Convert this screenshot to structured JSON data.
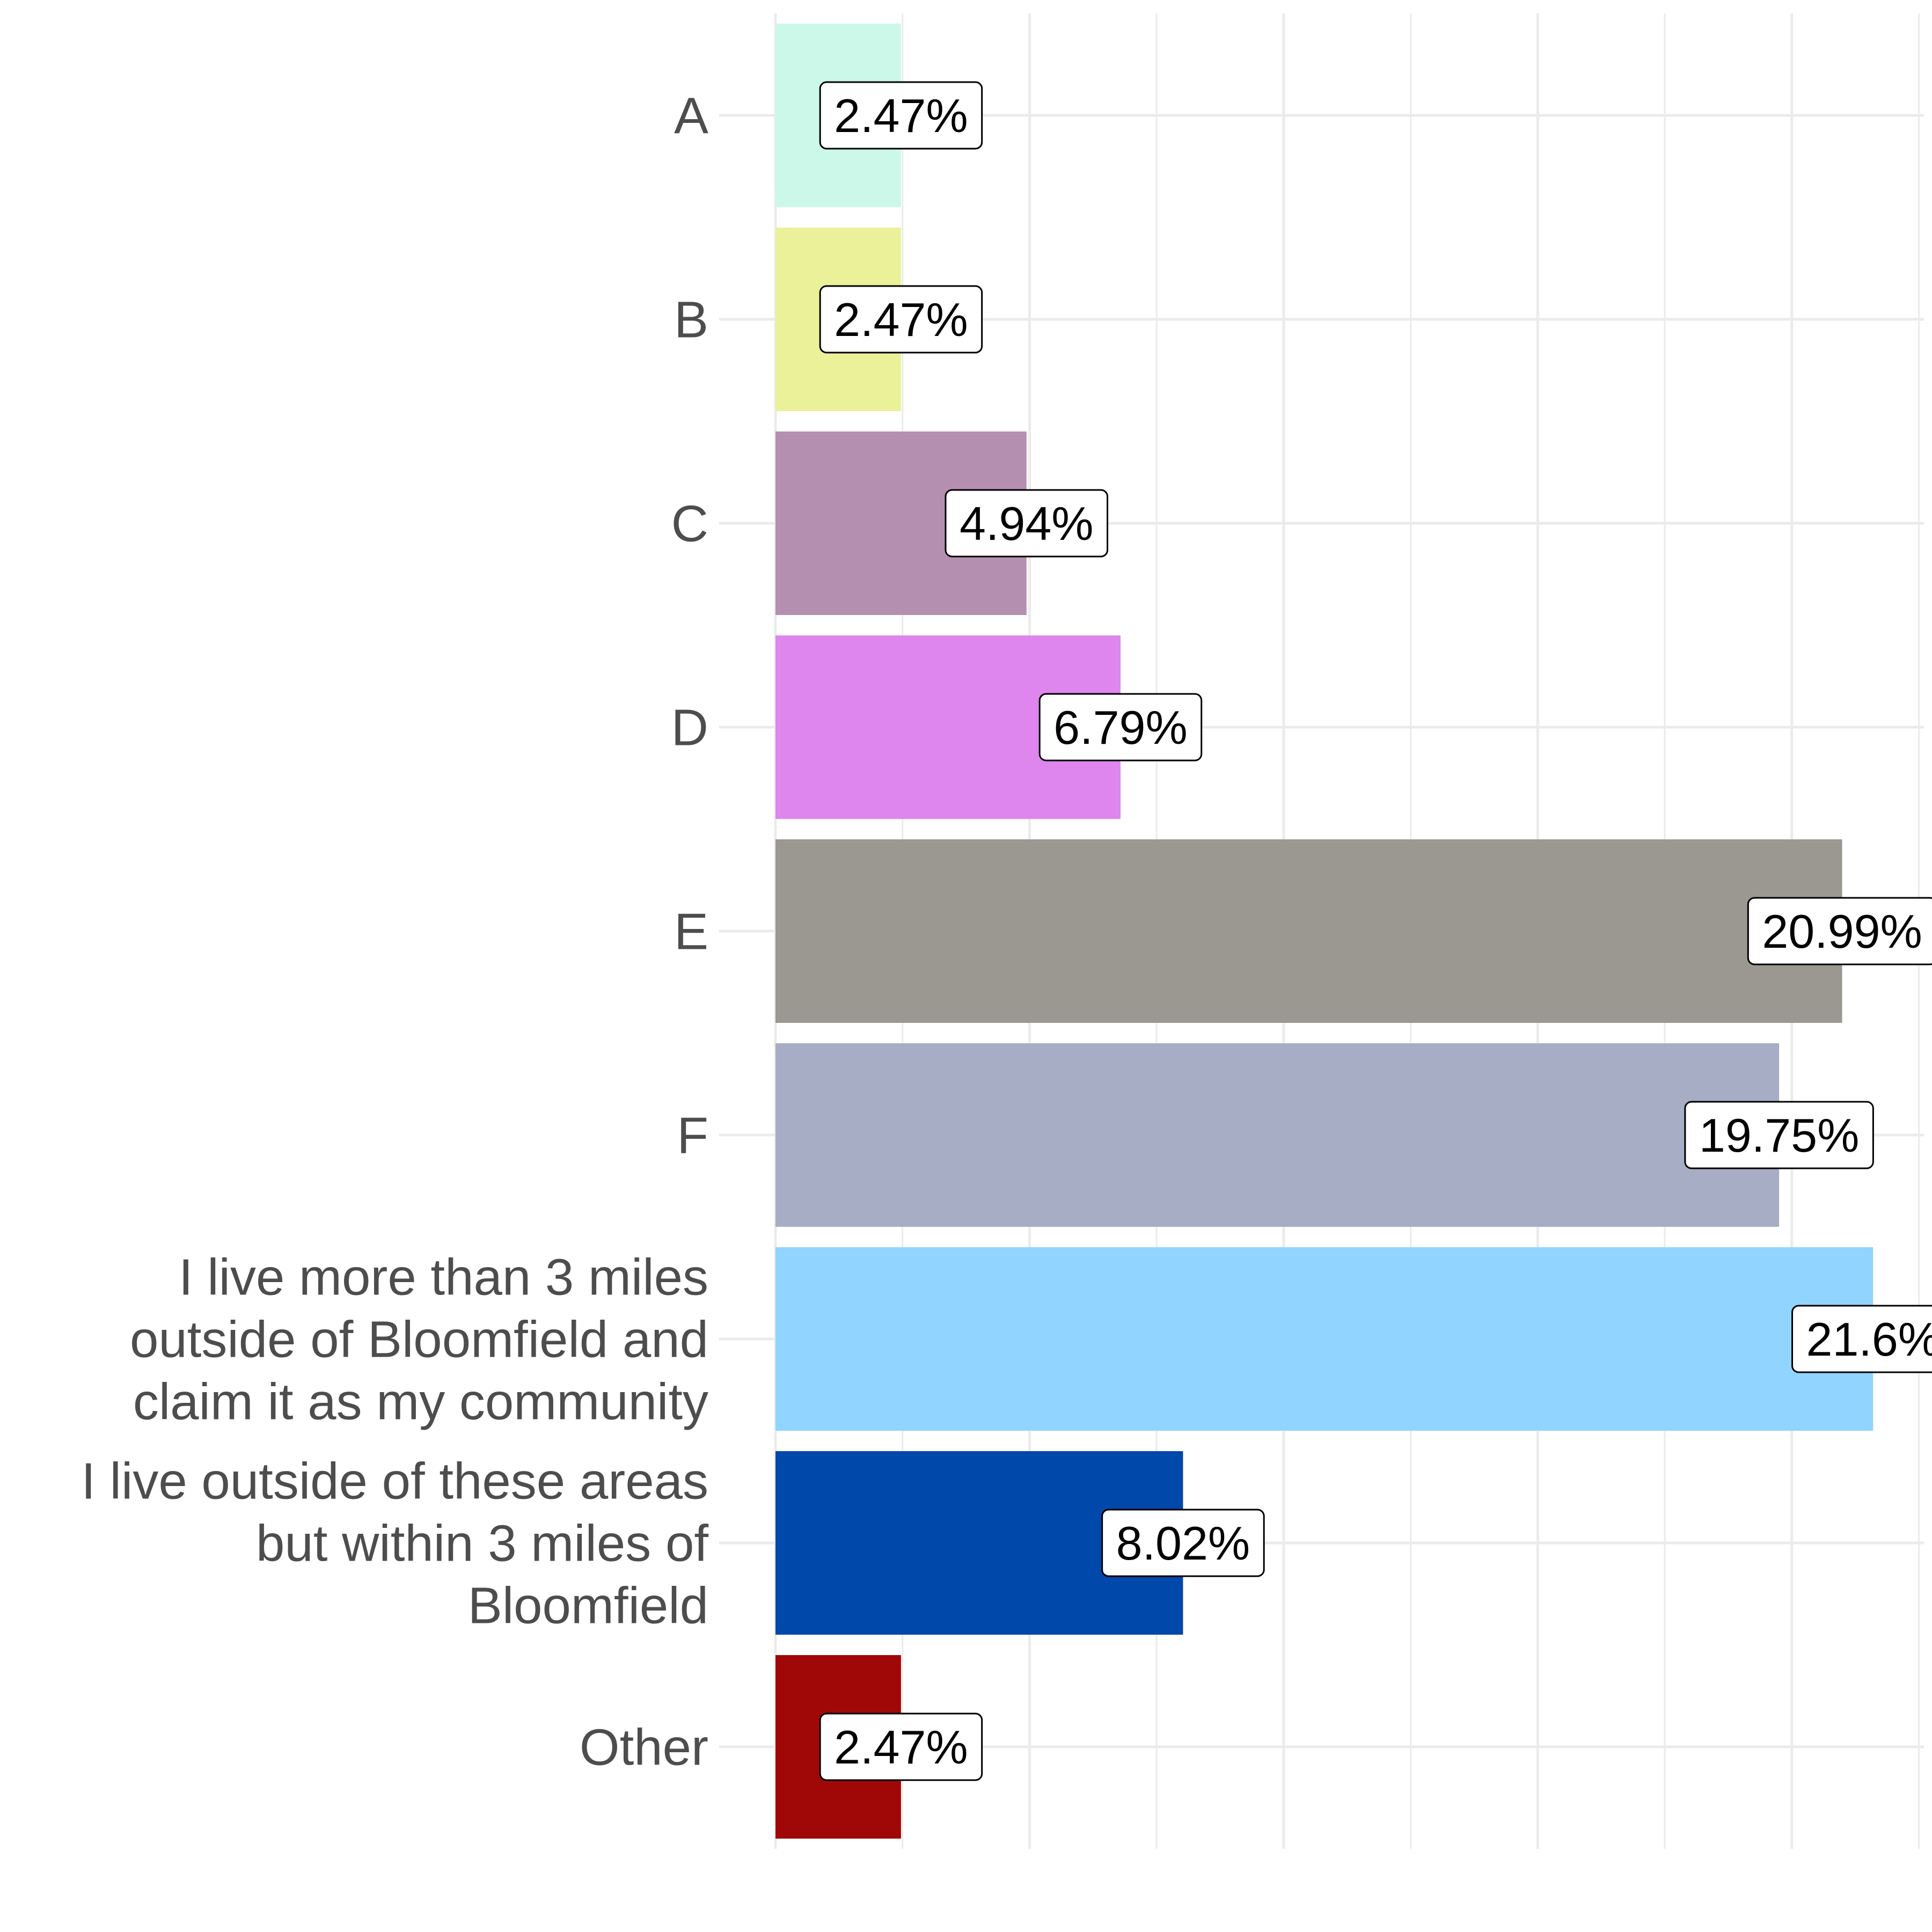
{
  "chart_data": {
    "type": "bar",
    "orientation": "horizontal",
    "title": "",
    "xlabel": "",
    "ylabel": "",
    "xlim": [
      0,
      22.6
    ],
    "grid": true,
    "legend": "none",
    "categories": [
      [
        "A"
      ],
      [
        "B"
      ],
      [
        "C"
      ],
      [
        "D"
      ],
      [
        "E"
      ],
      [
        "F"
      ],
      [
        "I live more than 3 miles",
        "outside of Bloomfield and",
        "claim it as my community"
      ],
      [
        "I live outside of these areas",
        "but within 3 miles of",
        "Bloomfield"
      ],
      [
        "Other"
      ]
    ],
    "values": [
      2.47,
      2.47,
      4.94,
      6.79,
      20.99,
      19.75,
      21.6,
      8.02,
      2.47
    ],
    "value_labels": [
      "2.47%",
      "2.47%",
      "4.94%",
      "6.79%",
      "20.99%",
      "19.75%",
      "21.6%",
      "8.02%",
      "2.47%"
    ],
    "colors": [
      "#ccf8ea",
      "#ebf198",
      "#b58fb0",
      "#de86ed",
      "#9b9791",
      "#a7adc4",
      "#90d4ff",
      "#0048aa",
      "#a00808"
    ]
  }
}
